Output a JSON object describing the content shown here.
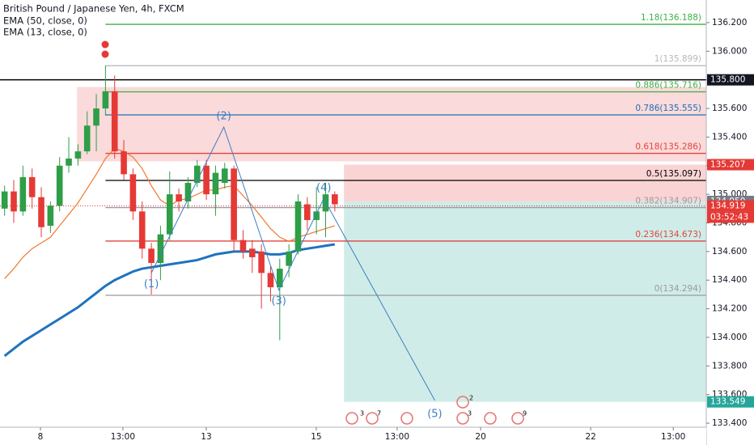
{
  "chart_data": {
    "type": "candlestick",
    "title": "British Pound / Japanese Yen, 4h, FXCM",
    "xlim": [
      0,
      77
    ],
    "ylim": [
      133.372,
      136.358
    ],
    "yticks": [
      {
        "value": 136.2,
        "label": "136.200"
      },
      {
        "value": 136.0,
        "label": "136.000"
      },
      {
        "value": 135.8,
        "label": "135.800"
      },
      {
        "value": 135.6,
        "label": "135.600"
      },
      {
        "value": 135.4,
        "label": "135.400"
      },
      {
        "value": 135.2,
        "label": "135.200"
      },
      {
        "value": 135.0,
        "label": "135.000"
      },
      {
        "value": 134.8,
        "label": "134.800"
      },
      {
        "value": 134.6,
        "label": "134.600"
      },
      {
        "value": 134.4,
        "label": "134.400"
      },
      {
        "value": 134.2,
        "label": "134.200"
      },
      {
        "value": 134.0,
        "label": "134.000"
      },
      {
        "value": 133.8,
        "label": "133.800"
      },
      {
        "value": 133.6,
        "label": "133.600"
      },
      {
        "value": 133.4,
        "label": "133.400"
      }
    ],
    "xticks": [
      {
        "value": 4.41,
        "label": "8"
      },
      {
        "value": 13.4,
        "label": "13:00"
      },
      {
        "value": 22.49,
        "label": "13"
      },
      {
        "value": 34.48,
        "label": "15"
      },
      {
        "value": 43.3,
        "label": "13:00"
      },
      {
        "value": 52.4,
        "label": "20"
      },
      {
        "value": 64.4,
        "label": "22"
      },
      {
        "value": 73.4,
        "label": "13:00"
      }
    ],
    "up_color": "#2e9e47",
    "down_color": "#e53935",
    "x": [
      0.5,
      1.5,
      2.5,
      3.5,
      4.5,
      5.5,
      6.5,
      7.5,
      8.5,
      9.5,
      10.5,
      11.5,
      12.5,
      13.5,
      14.5,
      15.5,
      16.5,
      17.5,
      18.5,
      19.5,
      20.5,
      21.5,
      22.5,
      23.5,
      24.5,
      25.5,
      26.5,
      27.5,
      28.5,
      29.5,
      30.5,
      31.5,
      32.5,
      33.5,
      34.5,
      35.5,
      36.5
    ],
    "open": [
      134.9,
      135.02,
      134.88,
      135.12,
      134.98,
      134.78,
      134.92,
      135.2,
      135.25,
      135.3,
      135.48,
      135.6,
      135.72,
      135.3,
      135.14,
      134.88,
      134.62,
      134.52,
      134.72,
      135.0,
      134.95,
      135.08,
      135.2,
      135.0,
      135.08,
      135.18,
      134.68,
      134.62,
      134.6,
      134.45,
      134.35,
      134.5,
      134.6,
      134.93,
      134.82,
      134.88,
      135.0
    ],
    "high": [
      135.06,
      135.1,
      135.2,
      135.18,
      135.05,
      134.95,
      135.26,
      135.4,
      135.35,
      135.58,
      135.7,
      135.9,
      135.83,
      135.38,
      135.18,
      134.95,
      134.66,
      134.78,
      135.16,
      135.04,
      135.12,
      135.24,
      135.24,
      135.2,
      135.22,
      135.2,
      134.75,
      134.68,
      134.65,
      134.5,
      134.55,
      134.65,
      135.0,
      134.98,
      135.05,
      135.08,
      135.02
    ],
    "low": [
      134.85,
      134.8,
      134.85,
      134.9,
      134.7,
      134.73,
      134.88,
      135.15,
      135.2,
      135.28,
      135.3,
      135.55,
      135.25,
      135.1,
      134.82,
      134.55,
      134.3,
      134.4,
      134.68,
      134.88,
      134.9,
      135.05,
      134.96,
      134.85,
      135.04,
      134.6,
      134.55,
      134.45,
      134.2,
      134.25,
      133.98,
      134.42,
      134.58,
      134.75,
      134.72,
      134.7,
      134.88
    ],
    "close": [
      135.02,
      134.88,
      135.12,
      134.98,
      134.77,
      134.92,
      135.2,
      135.25,
      135.3,
      135.48,
      135.6,
      135.72,
      135.3,
      135.14,
      134.88,
      134.62,
      134.52,
      134.72,
      135.0,
      134.95,
      135.08,
      135.2,
      135.0,
      135.15,
      135.18,
      134.68,
      134.6,
      134.56,
      134.45,
      134.35,
      134.48,
      134.6,
      134.95,
      134.82,
      134.88,
      135.0,
      134.93
    ],
    "indicators": [
      {
        "name": "EMA (50, close, 0)",
        "color": "#1e73be",
        "values": [
          133.87,
          133.92,
          133.97,
          134.01,
          134.05,
          134.09,
          134.13,
          134.17,
          134.21,
          134.26,
          134.31,
          134.36,
          134.4,
          134.43,
          134.46,
          134.48,
          134.49,
          134.5,
          134.51,
          134.52,
          134.53,
          134.54,
          134.56,
          134.58,
          134.59,
          134.6,
          134.6,
          134.6,
          134.59,
          134.58,
          134.58,
          134.59,
          134.61,
          134.62,
          134.63,
          134.64,
          134.65
        ]
      },
      {
        "name": "EMA (13, close, 0)",
        "color": "#f0782a",
        "values": [
          134.41,
          134.48,
          134.56,
          134.62,
          134.66,
          134.7,
          134.78,
          134.86,
          134.94,
          135.04,
          135.14,
          135.25,
          135.32,
          135.3,
          135.26,
          135.18,
          135.06,
          134.96,
          134.92,
          134.96,
          134.97,
          135.0,
          135.03,
          135.03,
          135.05,
          135.06,
          134.99,
          134.92,
          134.84,
          134.76,
          134.7,
          134.67,
          134.7,
          134.72,
          134.74,
          134.76,
          134.78
        ]
      }
    ],
    "fib_start": 11.5,
    "fib_levels": [
      {
        "label": "1.18(136.188)",
        "value": 136.188,
        "color": "#3cb043"
      },
      {
        "label": "1(135.899)",
        "value": 135.899,
        "color": "#b8b8c0"
      },
      {
        "label": "0.886(135.716)",
        "value": 135.716,
        "color": "#3cb043"
      },
      {
        "label": "0.786(135.555)",
        "value": 135.555,
        "color": "#1e6fb8"
      },
      {
        "label": "0.618(135.286)",
        "value": 135.286,
        "color": "#e0453e"
      },
      {
        "label": "0.5(135.097)",
        "value": 135.097,
        "color": "#000000"
      },
      {
        "label": "0.382(134.907)",
        "value": 134.907,
        "color": "#9a9aa0"
      },
      {
        "label": "0.236(134.673)",
        "value": 134.673,
        "color": "#e0453e"
      },
      {
        "label": "0(134.294)",
        "value": 134.294,
        "color": "#9a9aa0"
      }
    ],
    "zone": {
      "x_from": 8.4,
      "top": 135.75,
      "bottom": 135.23,
      "color": "rgba(240,150,150,0.35)"
    },
    "position": {
      "x_from": 37.5,
      "stop": 135.207,
      "entry": 134.95,
      "target": 133.549,
      "stop_color": "rgba(245,160,160,0.45)",
      "target_color": "rgba(120,200,190,0.35)"
    },
    "horizontal_line": {
      "value": 135.8,
      "color": "#000000"
    },
    "last_price_line": {
      "value": 134.919,
      "color": "#e53935"
    },
    "price_badges": [
      {
        "value": 135.8,
        "label": "135.800",
        "color": "#131722"
      },
      {
        "value": 135.207,
        "label": "135.207",
        "color": "#e53935"
      },
      {
        "value": 134.95,
        "label": "134.950",
        "color": "#787b86"
      },
      {
        "value": 134.919,
        "label": "134.919",
        "color": "#e53935"
      },
      {
        "value": 133.549,
        "label": "133.549",
        "color": "#26a69a"
      }
    ],
    "countdown": "03:52:43",
    "wave": {
      "color": "#3b7fc4",
      "labels": [
        "(1)",
        "(2)",
        "(3)",
        "(4)",
        "(5)"
      ],
      "x": [
        16.5,
        24.4,
        30.4,
        35.3,
        47.4
      ],
      "values": [
        134.45,
        135.47,
        134.33,
        134.97,
        133.56
      ]
    },
    "event_badges": [
      "3",
      "7",
      "2",
      "3",
      "9"
    ]
  }
}
